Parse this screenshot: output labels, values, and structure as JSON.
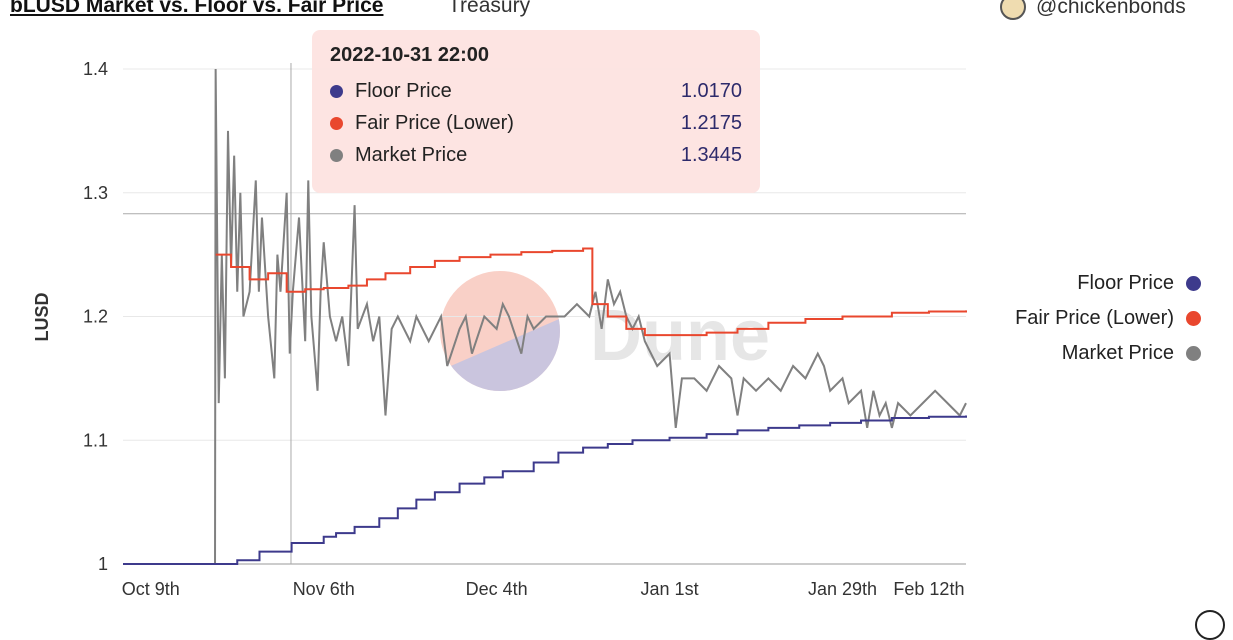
{
  "header": {
    "title": "bLUSD Market vs. Floor vs. Fair Price",
    "subtitle": "Treasury",
    "author": "@chickenbonds"
  },
  "tooltip": {
    "timestamp": "2022-10-31 22:00",
    "rows": [
      {
        "label": "Floor Price",
        "value": "1.0170",
        "color": "#3d3a8c"
      },
      {
        "label": "Fair Price (Lower)",
        "value": "1.2175",
        "color": "#e9472e"
      },
      {
        "label": "Market Price",
        "value": "1.3445",
        "color": "#808080"
      }
    ]
  },
  "watermark": "Dune",
  "chart_data": {
    "type": "line",
    "title": "bLUSD Market vs. Floor vs. Fair Price",
    "xlabel": "",
    "ylabel": "LUSD",
    "x_unit": "days since Oct 9th 2022",
    "xlim": [
      -4.5,
      132
    ],
    "ylim": [
      1,
      1.4
    ],
    "yticks": [
      {
        "v": 1,
        "label": "1"
      },
      {
        "v": 1.1,
        "label": "1.1"
      },
      {
        "v": 1.2,
        "label": "1.2"
      },
      {
        "v": 1.3,
        "label": "1.3"
      },
      {
        "v": 1.4,
        "label": "1.4"
      }
    ],
    "xticks": [
      {
        "v": 0,
        "label": "Oct 9th"
      },
      {
        "v": 28,
        "label": "Nov 6th"
      },
      {
        "v": 56,
        "label": "Dec 4th"
      },
      {
        "v": 84,
        "label": "Jan 1st"
      },
      {
        "v": 112,
        "label": "Jan 29th"
      },
      {
        "v": 126,
        "label": "Feb 12th"
      }
    ],
    "legend": "right",
    "grid": true,
    "crosshair": {
      "x": 22.7,
      "y": 1.283
    },
    "series": [
      {
        "name": "Floor Price",
        "color": "#3d3a8c",
        "step": true,
        "points": [
          [
            -4.5,
            1
          ],
          [
            10.5,
            1
          ],
          [
            14,
            1.003
          ],
          [
            17.6,
            1.01
          ],
          [
            22.8,
            1.017
          ],
          [
            28,
            1.022
          ],
          [
            30,
            1.025
          ],
          [
            33,
            1.03
          ],
          [
            37,
            1.037
          ],
          [
            40,
            1.045
          ],
          [
            43,
            1.052
          ],
          [
            46,
            1.058
          ],
          [
            50,
            1.065
          ],
          [
            54,
            1.07
          ],
          [
            57,
            1.075
          ],
          [
            62,
            1.082
          ],
          [
            66,
            1.09
          ],
          [
            70,
            1.094
          ],
          [
            74,
            1.097
          ],
          [
            78,
            1.1
          ],
          [
            84,
            1.102
          ],
          [
            90,
            1.105
          ],
          [
            95,
            1.108
          ],
          [
            100,
            1.11
          ],
          [
            105,
            1.112
          ],
          [
            110,
            1.114
          ],
          [
            115,
            1.116
          ],
          [
            120,
            1.118
          ],
          [
            126,
            1.119
          ],
          [
            132,
            1.12
          ]
        ]
      },
      {
        "name": "Fair Price (Lower)",
        "color": "#e9472e",
        "step": true,
        "points": [
          [
            10.5,
            1.25
          ],
          [
            13,
            1.24
          ],
          [
            16,
            1.23
          ],
          [
            19,
            1.235
          ],
          [
            22,
            1.22
          ],
          [
            25,
            1.222
          ],
          [
            28,
            1.223
          ],
          [
            32,
            1.225
          ],
          [
            35,
            1.23
          ],
          [
            38,
            1.235
          ],
          [
            42,
            1.24
          ],
          [
            46,
            1.245
          ],
          [
            50,
            1.248
          ],
          [
            55,
            1.25
          ],
          [
            60,
            1.252
          ],
          [
            65,
            1.253
          ],
          [
            70,
            1.255
          ],
          [
            71.5,
            1.21
          ],
          [
            74,
            1.2
          ],
          [
            77,
            1.19
          ],
          [
            80,
            1.185
          ],
          [
            90,
            1.187
          ],
          [
            95,
            1.19
          ],
          [
            100,
            1.195
          ],
          [
            106,
            1.198
          ],
          [
            112,
            1.2
          ],
          [
            120,
            1.203
          ],
          [
            126,
            1.204
          ],
          [
            132,
            1.205
          ]
        ]
      },
      {
        "name": "Market Price",
        "color": "#808080",
        "step": false,
        "points": [
          [
            -4.5,
            1
          ],
          [
            10.4,
            1
          ],
          [
            10.5,
            1.4
          ],
          [
            11,
            1.13
          ],
          [
            11.5,
            1.25
          ],
          [
            12,
            1.15
          ],
          [
            12.5,
            1.35
          ],
          [
            13,
            1.24
          ],
          [
            13.5,
            1.33
          ],
          [
            14,
            1.22
          ],
          [
            14.5,
            1.3
          ],
          [
            15,
            1.2
          ],
          [
            16,
            1.22
          ],
          [
            17,
            1.31
          ],
          [
            17.5,
            1.22
          ],
          [
            18,
            1.28
          ],
          [
            19,
            1.2
          ],
          [
            20,
            1.15
          ],
          [
            20.5,
            1.25
          ],
          [
            21,
            1.22
          ],
          [
            22,
            1.3
          ],
          [
            22.5,
            1.17
          ],
          [
            23,
            1.22
          ],
          [
            24,
            1.28
          ],
          [
            25,
            1.18
          ],
          [
            25.5,
            1.31
          ],
          [
            26,
            1.2
          ],
          [
            27,
            1.14
          ],
          [
            27.5,
            1.22
          ],
          [
            28,
            1.26
          ],
          [
            29,
            1.2
          ],
          [
            30,
            1.18
          ],
          [
            31,
            1.2
          ],
          [
            32,
            1.16
          ],
          [
            33,
            1.29
          ],
          [
            33.5,
            1.19
          ],
          [
            35,
            1.21
          ],
          [
            36,
            1.18
          ],
          [
            37,
            1.2
          ],
          [
            38,
            1.12
          ],
          [
            39,
            1.19
          ],
          [
            40,
            1.2
          ],
          [
            42,
            1.18
          ],
          [
            43,
            1.2
          ],
          [
            45,
            1.18
          ],
          [
            47,
            1.2
          ],
          [
            48,
            1.16
          ],
          [
            50,
            1.19
          ],
          [
            51,
            1.2
          ],
          [
            52,
            1.17
          ],
          [
            54,
            1.2
          ],
          [
            56,
            1.19
          ],
          [
            57,
            1.21
          ],
          [
            58,
            1.2
          ],
          [
            60,
            1.17
          ],
          [
            61,
            1.2
          ],
          [
            62,
            1.19
          ],
          [
            64,
            1.2
          ],
          [
            67,
            1.2
          ],
          [
            69,
            1.21
          ],
          [
            71,
            1.2
          ],
          [
            72,
            1.22
          ],
          [
            73,
            1.19
          ],
          [
            74,
            1.23
          ],
          [
            75,
            1.21
          ],
          [
            76,
            1.22
          ],
          [
            77,
            1.2
          ],
          [
            78,
            1.19
          ],
          [
            79,
            1.2
          ],
          [
            80,
            1.18
          ],
          [
            82,
            1.16
          ],
          [
            84,
            1.17
          ],
          [
            85,
            1.11
          ],
          [
            86,
            1.15
          ],
          [
            88,
            1.15
          ],
          [
            90,
            1.14
          ],
          [
            92,
            1.16
          ],
          [
            94,
            1.15
          ],
          [
            95,
            1.12
          ],
          [
            96,
            1.15
          ],
          [
            98,
            1.14
          ],
          [
            100,
            1.15
          ],
          [
            102,
            1.14
          ],
          [
            104,
            1.16
          ],
          [
            106,
            1.15
          ],
          [
            108,
            1.17
          ],
          [
            109,
            1.16
          ],
          [
            110,
            1.14
          ],
          [
            112,
            1.15
          ],
          [
            113,
            1.13
          ],
          [
            115,
            1.14
          ],
          [
            116,
            1.11
          ],
          [
            117,
            1.14
          ],
          [
            118,
            1.12
          ],
          [
            119,
            1.13
          ],
          [
            120,
            1.11
          ],
          [
            121,
            1.13
          ],
          [
            123,
            1.12
          ],
          [
            125,
            1.13
          ],
          [
            127,
            1.14
          ],
          [
            129,
            1.13
          ],
          [
            131,
            1.12
          ],
          [
            132,
            1.13
          ]
        ]
      }
    ]
  }
}
